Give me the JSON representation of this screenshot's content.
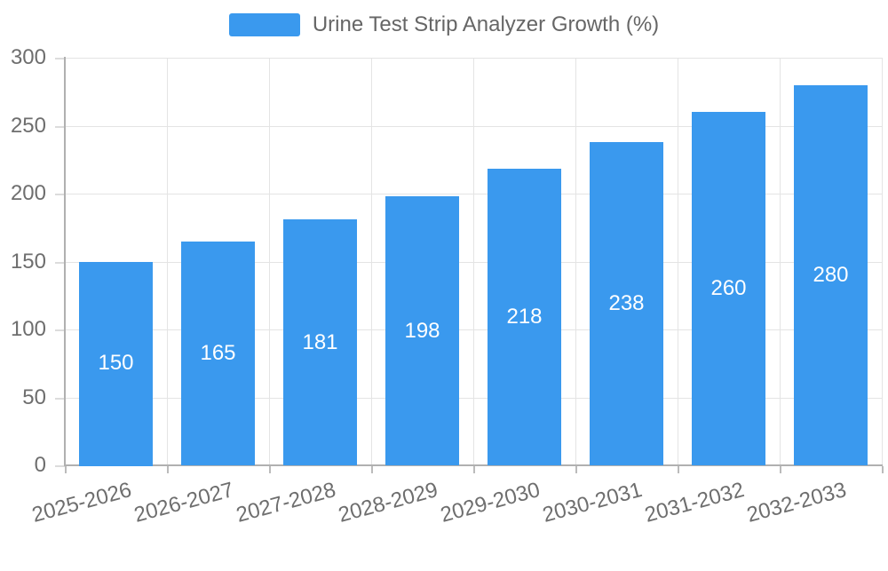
{
  "chart_data": {
    "type": "bar",
    "title": "",
    "legend": [
      "Urine Test Strip Analyzer Growth (%)"
    ],
    "legend_position": "top",
    "categories": [
      "2025-2026",
      "2026-2027",
      "2027-2028",
      "2028-2029",
      "2029-2030",
      "2030-2031",
      "2031-2032",
      "2032-2033"
    ],
    "series": [
      {
        "name": "Urine Test Strip Analyzer Growth (%)",
        "values": [
          150,
          165,
          181,
          198,
          218,
          238,
          260,
          280
        ]
      }
    ],
    "bar_value_labels": [
      "150",
      "165",
      "181",
      "198",
      "218",
      "238",
      "260",
      "280"
    ],
    "xlabel": "",
    "ylabel": "",
    "ylim": [
      0,
      300
    ],
    "yticks": [
      0,
      50,
      100,
      150,
      200,
      250,
      300
    ],
    "grid": true,
    "x_label_rotation_deg": -15
  },
  "colors": {
    "bar": "#3A99EE",
    "bar_label": "#FFFFFF",
    "gridline": "#E4E4E4",
    "axis_line": "#B0B0B0",
    "y_tick_mark": "#DCDCDC",
    "x_tick_mark": "#BBBBBB",
    "tick_text": "#6E6E6E",
    "legend_text": "#666666"
  }
}
